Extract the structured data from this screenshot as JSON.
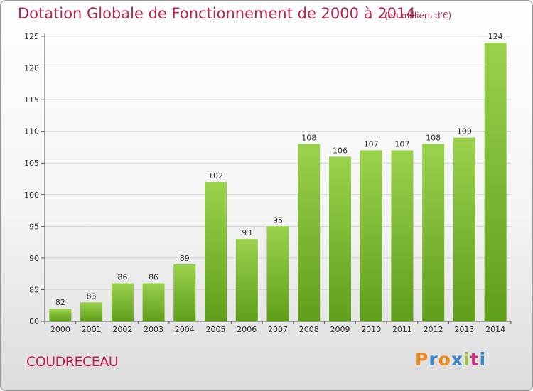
{
  "title": "Dotation Globale de Fonctionnement de 2000 à 2014",
  "subtitle": "(en milliers d'€)",
  "commune": "COUDRECEAU",
  "brand": {
    "letters": [
      "P",
      "r",
      "o",
      "x",
      "i",
      "t",
      "i"
    ],
    "colors": [
      "#f08a1c",
      "#3a86c8",
      "#f08a1c",
      "#3a86c8",
      "#9ac23c",
      "#c8327a",
      "#3a86c8"
    ]
  },
  "colors": {
    "bar": "#8cc63f",
    "bar_dark": "#5f9e1a",
    "title": "#b5264b"
  },
  "chart_data": {
    "type": "bar",
    "title": "Dotation Globale de Fonctionnement de 2000 à 2014",
    "subtitle": "(en milliers d'€)",
    "xlabel": "",
    "ylabel": "",
    "categories": [
      "2000",
      "2001",
      "2002",
      "2003",
      "2004",
      "2005",
      "2006",
      "2007",
      "2008",
      "2009",
      "2010",
      "2011",
      "2012",
      "2013",
      "2014"
    ],
    "values": [
      82,
      83,
      86,
      86,
      89,
      102,
      93,
      95,
      108,
      106,
      107,
      107,
      108,
      109,
      124
    ],
    "ylim": [
      80,
      125
    ],
    "yticks": [
      80,
      85,
      90,
      95,
      100,
      105,
      110,
      115,
      120,
      125
    ],
    "grid": true
  }
}
